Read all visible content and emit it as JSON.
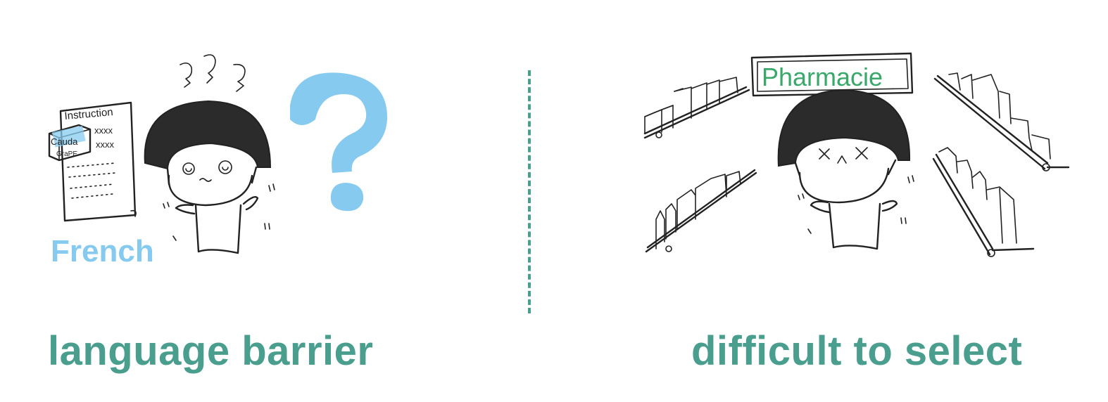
{
  "left_panel": {
    "caption": "language barrier",
    "instruction_sheet": {
      "heading": "Instruction",
      "box_line1": "Cauda",
      "box_line2": "GraPE",
      "marks_row1": "xxxx",
      "marks_row2": "xxxx"
    },
    "language_label": "French",
    "colors": {
      "question_mark": "#86cbef",
      "language_label": "#86cbef"
    }
  },
  "right_panel": {
    "caption": "difficult to select",
    "sign_text": "Pharmacie",
    "colors": {
      "sign_text": "#3aa86a"
    }
  },
  "colors": {
    "caption": "#4a9e8e",
    "divider": "#4a9e8e",
    "ink": "#222222"
  }
}
